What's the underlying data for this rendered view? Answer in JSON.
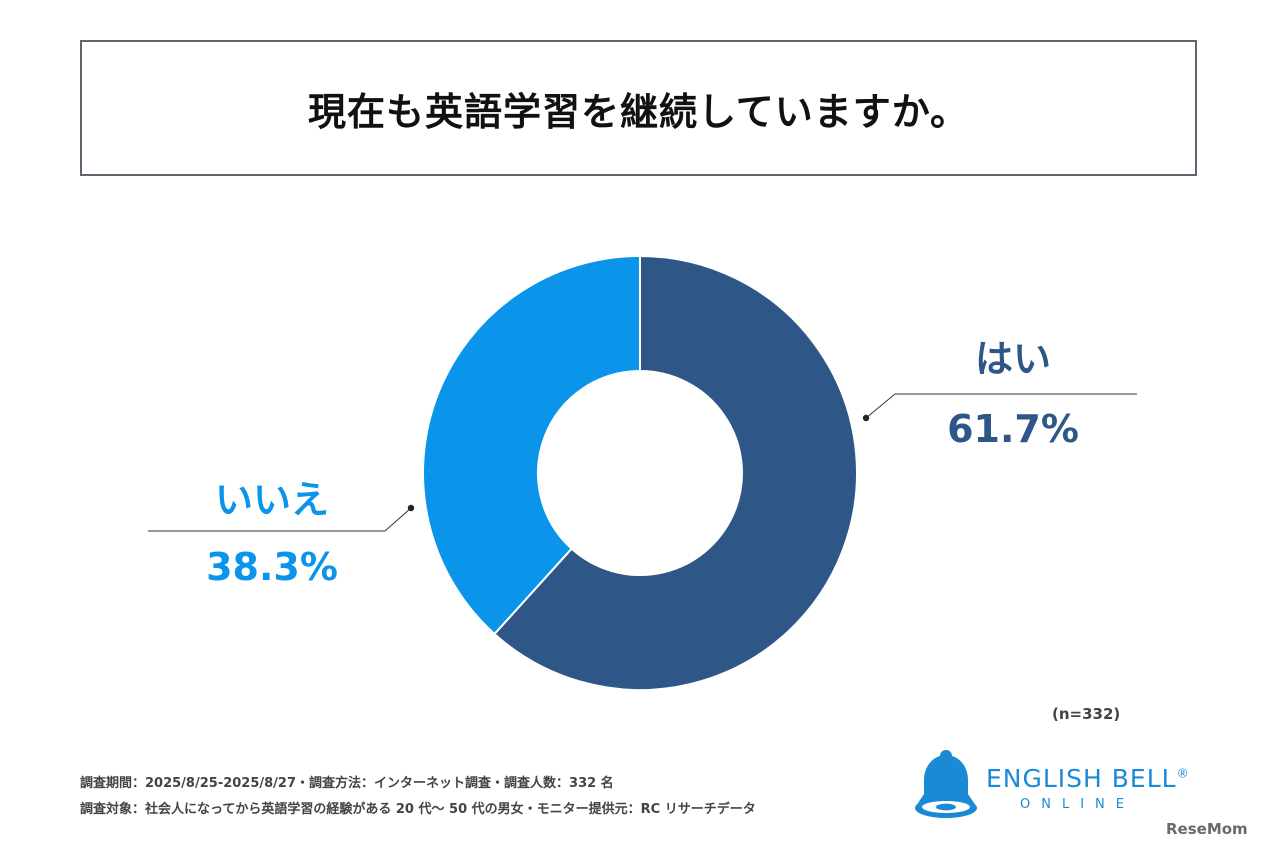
{
  "title": "現在も英語学習を継続していますか。",
  "chart_data": {
    "type": "pie",
    "categories": [
      "はい",
      "いいえ"
    ],
    "values": [
      61.7,
      38.3
    ],
    "value_labels": [
      "61.7%",
      "38.3%"
    ],
    "colors": [
      "#2e5788",
      "#0a94ea"
    ],
    "donut": true,
    "n_label": "(n=332)"
  },
  "footnotes": {
    "line1": "調査期間：2025/8/25-2025/8/27・調査方法：インターネット調査・調査人数：332 名",
    "line2": "調査対象：社会人になってから英語学習の経験がある 20 代〜 50 代の男女・モニター提供元：RC リサーチデータ"
  },
  "logo": {
    "main": "ENGLISH BELL",
    "reg": "®",
    "sub": "ONLINE",
    "icon": "bell-icon"
  },
  "watermark": "ReseMom"
}
